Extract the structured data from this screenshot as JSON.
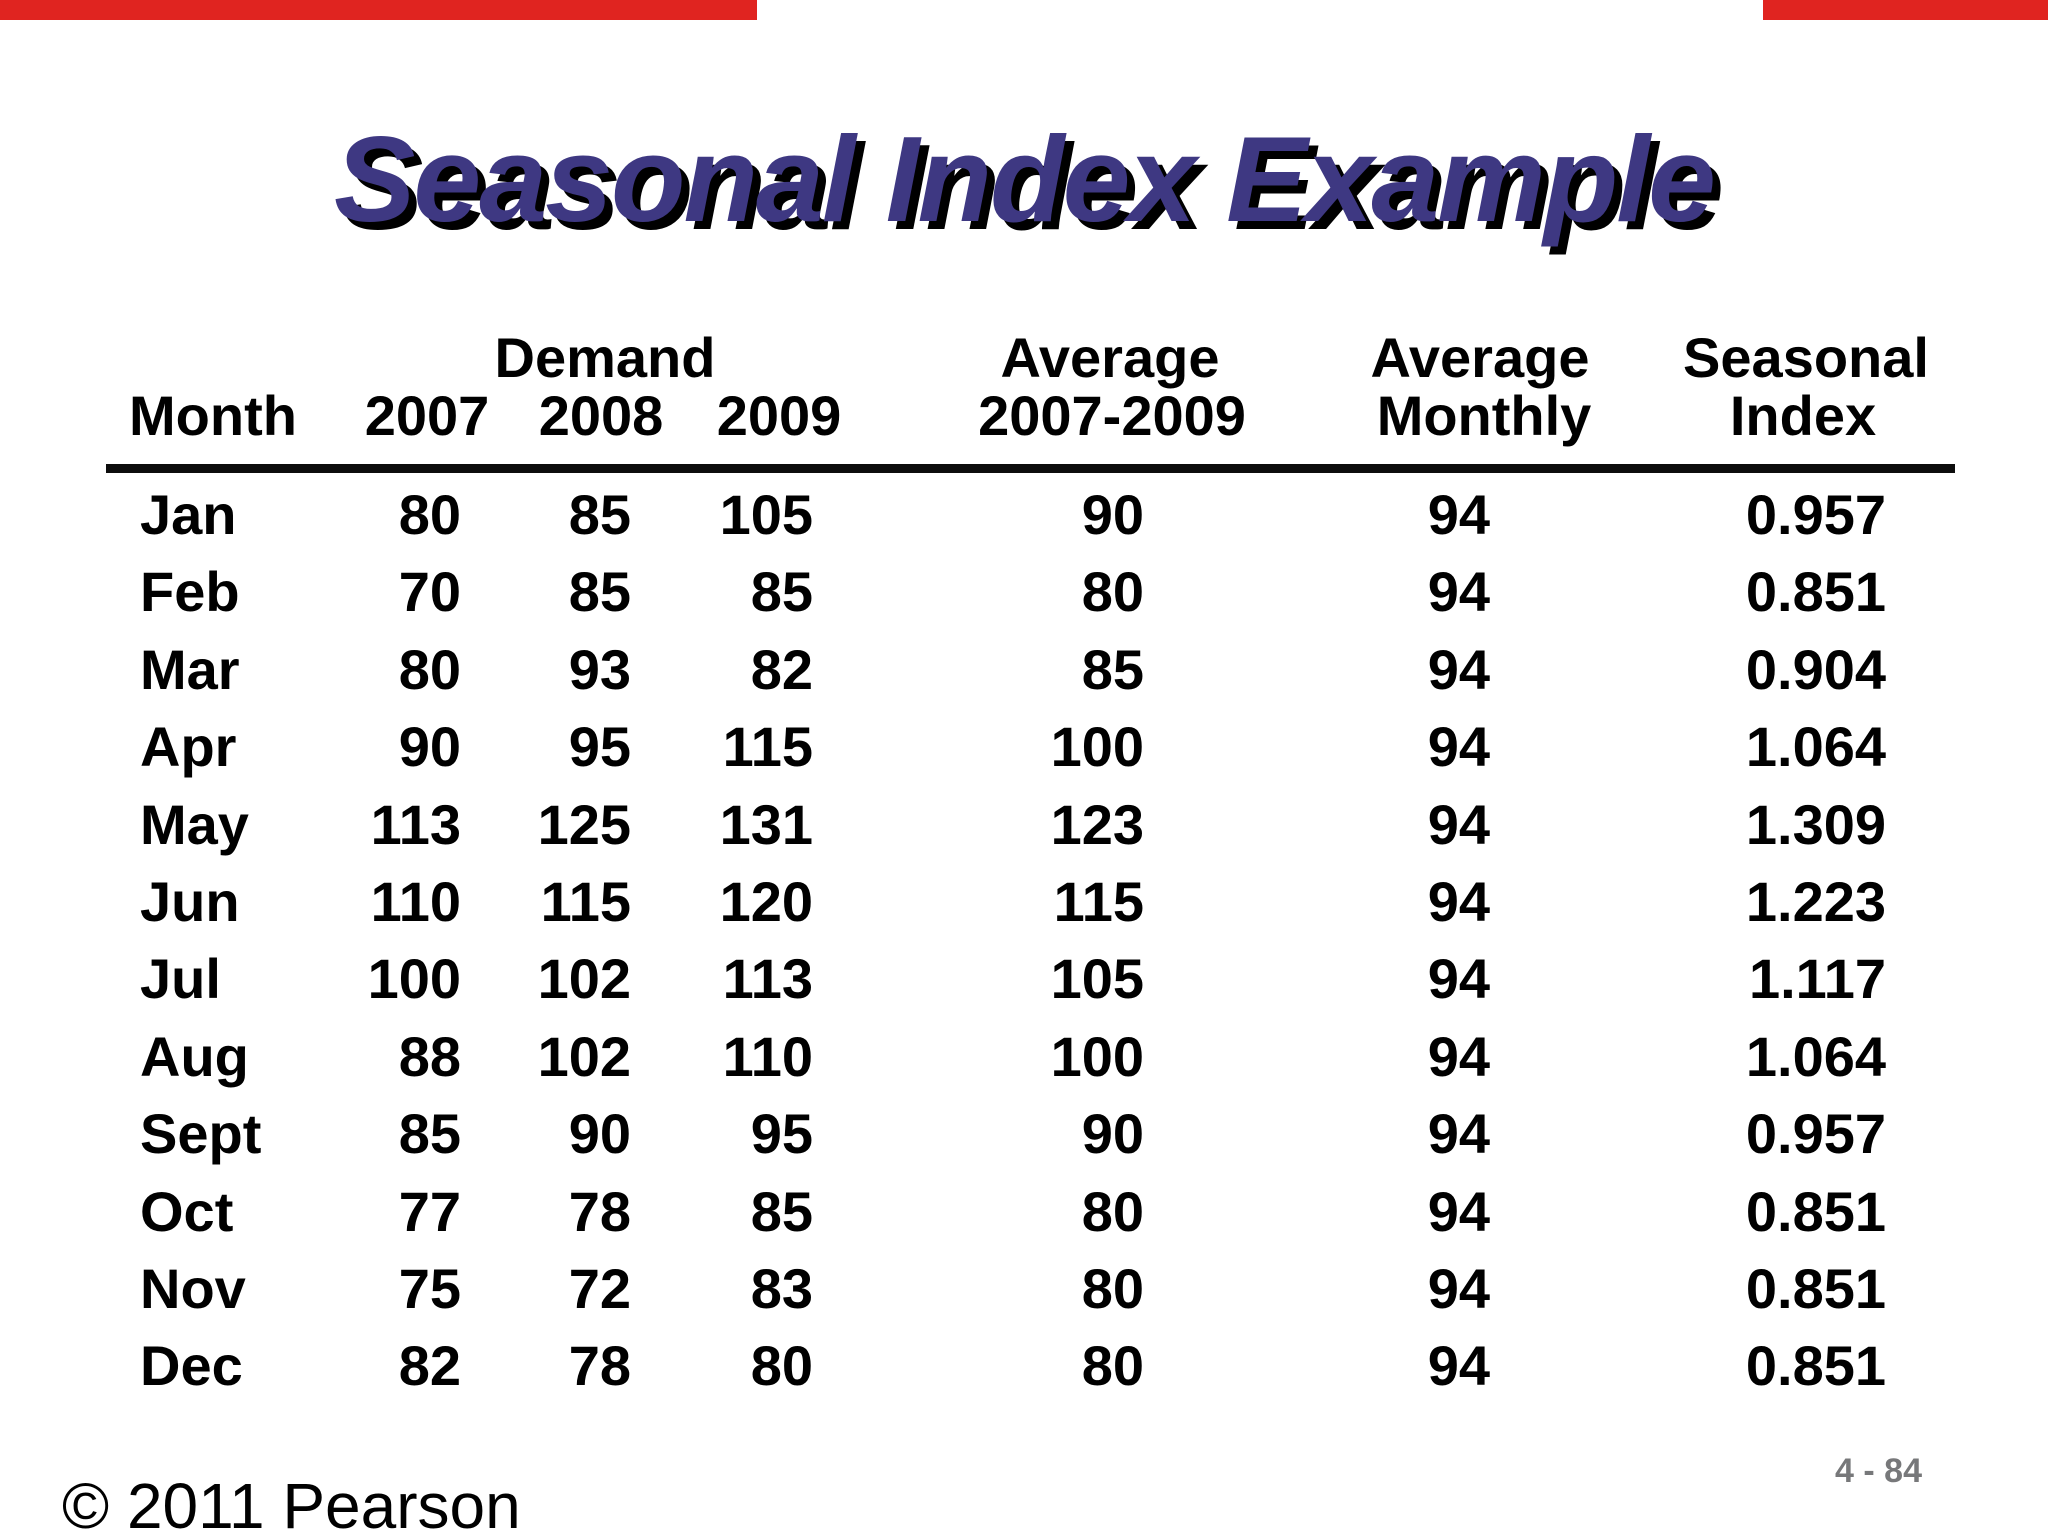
{
  "page": {
    "title": "Seasonal Index Example",
    "footer_left": "© 2011 Pearson",
    "slide_number": "4 - 84"
  },
  "colors": {
    "title_text": "#3e3882",
    "title_shadow": "#000000",
    "top_bar_red": "#e02420",
    "slide_number_gray": "#77787a",
    "table_text": "#000000"
  },
  "table": {
    "header": {
      "month": "Month",
      "demand_group": "Demand",
      "y2007": "2007",
      "y2008": "2008",
      "y2009": "2009",
      "avg_line1": "Average",
      "avg_line2": "2007-2009",
      "avg_monthly_line1": "Average",
      "avg_monthly_line2": "Monthly",
      "seasonal_line1": "Seasonal",
      "seasonal_line2": "Index"
    },
    "rows": [
      [
        "Jan",
        "80",
        "85",
        "105",
        "90",
        "94",
        "0.957"
      ],
      [
        "Feb",
        "70",
        "85",
        "85",
        "80",
        "94",
        "0.851"
      ],
      [
        "Mar",
        "80",
        "93",
        "82",
        "85",
        "94",
        "0.904"
      ],
      [
        "Apr",
        "90",
        "95",
        "115",
        "100",
        "94",
        "1.064"
      ],
      [
        "May",
        "113",
        "125",
        "131",
        "123",
        "94",
        "1.309"
      ],
      [
        "Jun",
        "110",
        "115",
        "120",
        "115",
        "94",
        "1.223"
      ],
      [
        "Jul",
        "100",
        "102",
        "113",
        "105",
        "94",
        "1.117"
      ],
      [
        "Aug",
        "88",
        "102",
        "110",
        "100",
        "94",
        "1.064"
      ],
      [
        "Sept",
        "85",
        "90",
        "95",
        "90",
        "94",
        "0.957"
      ],
      [
        "Oct",
        "77",
        "78",
        "85",
        "80",
        "94",
        "0.851"
      ],
      [
        "Nov",
        "75",
        "72",
        "83",
        "80",
        "94",
        "0.851"
      ],
      [
        "Dec",
        "82",
        "78",
        "80",
        "80",
        "94",
        "0.851"
      ]
    ]
  },
  "chart_data": {
    "type": "table",
    "title": "Seasonal Index Example",
    "columns": [
      "Month",
      "Demand 2007",
      "Demand 2008",
      "Demand 2009",
      "Average 2007-2009",
      "Average Monthly",
      "Seasonal Index"
    ],
    "rows": [
      [
        "Jan",
        80,
        85,
        105,
        90,
        94,
        0.957
      ],
      [
        "Feb",
        70,
        85,
        85,
        80,
        94,
        0.851
      ],
      [
        "Mar",
        80,
        93,
        82,
        85,
        94,
        0.904
      ],
      [
        "Apr",
        90,
        95,
        115,
        100,
        94,
        1.064
      ],
      [
        "May",
        113,
        125,
        131,
        123,
        94,
        1.309
      ],
      [
        "Jun",
        110,
        115,
        120,
        115,
        94,
        1.223
      ],
      [
        "Jul",
        100,
        102,
        113,
        105,
        94,
        1.117
      ],
      [
        "Aug",
        88,
        102,
        110,
        100,
        94,
        1.064
      ],
      [
        "Sept",
        85,
        90,
        95,
        90,
        94,
        0.957
      ],
      [
        "Oct",
        77,
        78,
        85,
        80,
        94,
        0.851
      ],
      [
        "Nov",
        75,
        72,
        83,
        80,
        94,
        0.851
      ],
      [
        "Dec",
        82,
        78,
        80,
        80,
        94,
        0.851
      ]
    ]
  }
}
